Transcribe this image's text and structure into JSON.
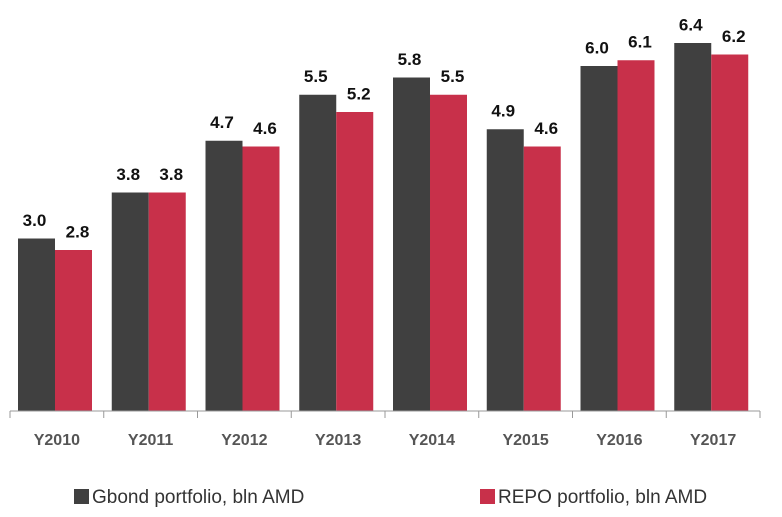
{
  "chart_data": {
    "type": "bar",
    "categories": [
      "Y2010",
      "Y2011",
      "Y2012",
      "Y2013",
      "Y2014",
      "Y2015",
      "Y2016",
      "Y2017"
    ],
    "series": [
      {
        "name": "Gbond portfolio, bln AMD",
        "color": "#404040",
        "values": [
          3.0,
          3.8,
          4.7,
          5.5,
          5.8,
          4.9,
          6.0,
          6.4
        ],
        "value_labels": [
          "3.0",
          "3.8",
          "4.7",
          "5.5",
          "5.8",
          "4.9",
          "6.0",
          "6.4"
        ]
      },
      {
        "name": "REPO portfolio, bln AMD",
        "color": "#c8304a",
        "values": [
          2.8,
          3.8,
          4.6,
          5.2,
          5.5,
          4.6,
          6.1,
          6.2
        ],
        "value_labels": [
          "2.8",
          "3.8",
          "4.6",
          "5.2",
          "5.5",
          "4.6",
          "6.1",
          "6.2"
        ]
      }
    ],
    "legend": "bottom"
  }
}
